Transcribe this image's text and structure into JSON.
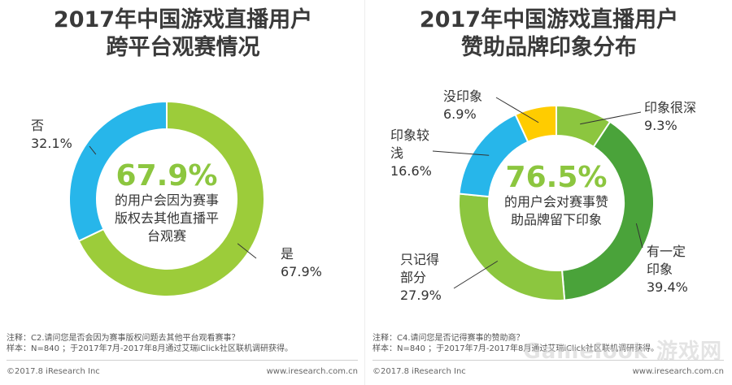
{
  "left": {
    "title_line1": "2017年中国游戏直播用户",
    "title_line2": "跨平台观赛情况",
    "center_value": "67.9%",
    "center_text": [
      "的用户会因为赛事",
      "版权去其他直播平",
      "台观赛"
    ],
    "footnote_line1": "注释：C2.请问您是否会因为赛事版权问题去其他平台观看赛事？",
    "footnote_line2": "样本：N=840 ；于2017年7月-2017年8月通过艾瑞iClick社区联机调研获得。",
    "copyright": "©2017.8 iResearch Inc",
    "website": "www.iresearch.com.cn"
  },
  "right": {
    "title_line1": "2017年中国游戏直播用户",
    "title_line2": "赞助品牌印象分布",
    "center_value": "76.5%",
    "center_text": [
      "的用户会对赛事赞",
      "助品牌留下印象"
    ],
    "footnote_line1": "注释：C4.请问您是否记得赛事的赞助商？",
    "footnote_line2": "样本：N=840 ；于2017年7月-2017年8月通过艾瑞iClick社区联机调研获得。",
    "copyright": "©2017.8 iResearch Inc",
    "website": "www.iresearch.com.cn",
    "watermark": "Gamelook 游戏网"
  },
  "colors": {
    "blue": "#27b6ea",
    "lime": "#9ccc3a",
    "green_light": "#8cc63f",
    "green_dark": "#4aa33a",
    "yellow": "#ffcc00",
    "center_text": "#8cc63f"
  },
  "chart_data": [
    {
      "type": "pie",
      "title": "2017年中国游戏直播用户跨平台观赛情况",
      "categories": [
        "是",
        "否"
      ],
      "values": [
        67.9,
        32.1
      ],
      "value_labels": [
        "67.9%",
        "32.1%"
      ],
      "colors": [
        "#9ccc3a",
        "#27b6ea"
      ],
      "label_lines": [
        [
          "是"
        ],
        [
          "否"
        ]
      ]
    },
    {
      "type": "pie",
      "title": "2017年中国游戏直播用户赞助品牌印象分布",
      "categories": [
        "印象很深",
        "有一定印象",
        "只记得部分",
        "印象较浅",
        "没印象"
      ],
      "values": [
        9.3,
        39.4,
        27.9,
        16.6,
        6.9
      ],
      "value_labels": [
        "9.3%",
        "39.4%",
        "27.9%",
        "16.6%",
        "6.9%"
      ],
      "colors": [
        "#8cc63f",
        "#4aa33a",
        "#8cc63f",
        "#27b6ea",
        "#ffcc00"
      ],
      "label_lines": [
        [
          "印象很深"
        ],
        [
          "有一定",
          "印象"
        ],
        [
          "只记得",
          "部分"
        ],
        [
          "印象较",
          "浅"
        ],
        [
          "没印象"
        ]
      ]
    }
  ]
}
